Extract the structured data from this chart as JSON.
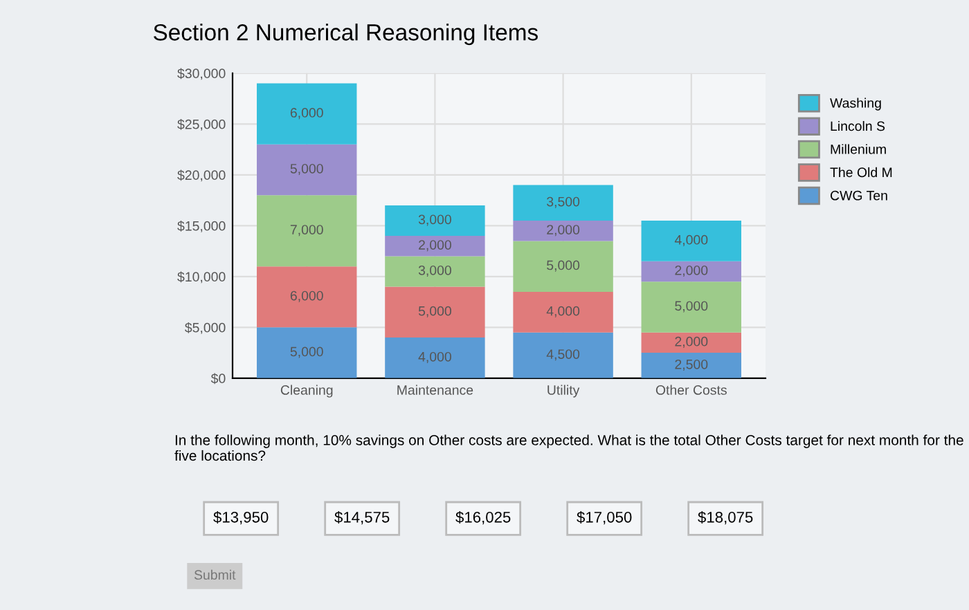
{
  "chart_data": {
    "type": "bar",
    "title": "Section 2 Numerical Reasoning Items",
    "stacked": true,
    "categories": [
      "Cleaning",
      "Maintenance",
      "Utility",
      "Other Costs"
    ],
    "series": [
      {
        "name": "CWG Ten",
        "color": "#5b9bd5",
        "values": [
          5000,
          4000,
          4500,
          2500
        ],
        "value_labels": [
          "5,000",
          "4,000",
          "4,500",
          "2,500"
        ]
      },
      {
        "name": "The Old M",
        "color": "#e07b7b",
        "values": [
          6000,
          5000,
          4000,
          2000
        ],
        "value_labels": [
          "6,000",
          "5,000",
          "4,000",
          "2,000"
        ]
      },
      {
        "name": "Millenium",
        "color": "#9dcb8a",
        "values": [
          7000,
          3000,
          5000,
          5000
        ],
        "value_labels": [
          "7,000",
          "3,000",
          "5,000",
          "5,000"
        ]
      },
      {
        "name": "Lincoln S",
        "color": "#9b8fce",
        "values": [
          5000,
          2000,
          2000,
          2000
        ],
        "value_labels": [
          "5,000",
          "2,000",
          "2,000",
          "2,000"
        ]
      },
      {
        "name": "Washing",
        "color": "#36bfdc",
        "values": [
          6000,
          3000,
          3500,
          4000
        ],
        "value_labels": [
          "6,000",
          "3,000",
          "3,500",
          "4,000"
        ]
      }
    ],
    "ylim": [
      0,
      30000
    ],
    "yticks": [
      {
        "value": 0,
        "label": "$0"
      },
      {
        "value": 5000,
        "label": "$5,000"
      },
      {
        "value": 10000,
        "label": "$10,000"
      },
      {
        "value": 15000,
        "label": "$15,000"
      },
      {
        "value": 20000,
        "label": "$20,000"
      },
      {
        "value": 25000,
        "label": "$25,000"
      },
      {
        "value": 30000,
        "label": "$30,000"
      }
    ],
    "grid": true,
    "legend": "right",
    "annotations": [
      "In the following month, 10% savings on Other costs are expected. What is the total Other Costs target for next month for the five locations?",
      "$13,950",
      "$14,575",
      "$16,025",
      "$17,050",
      "$18,075",
      "Submit"
    ]
  }
}
